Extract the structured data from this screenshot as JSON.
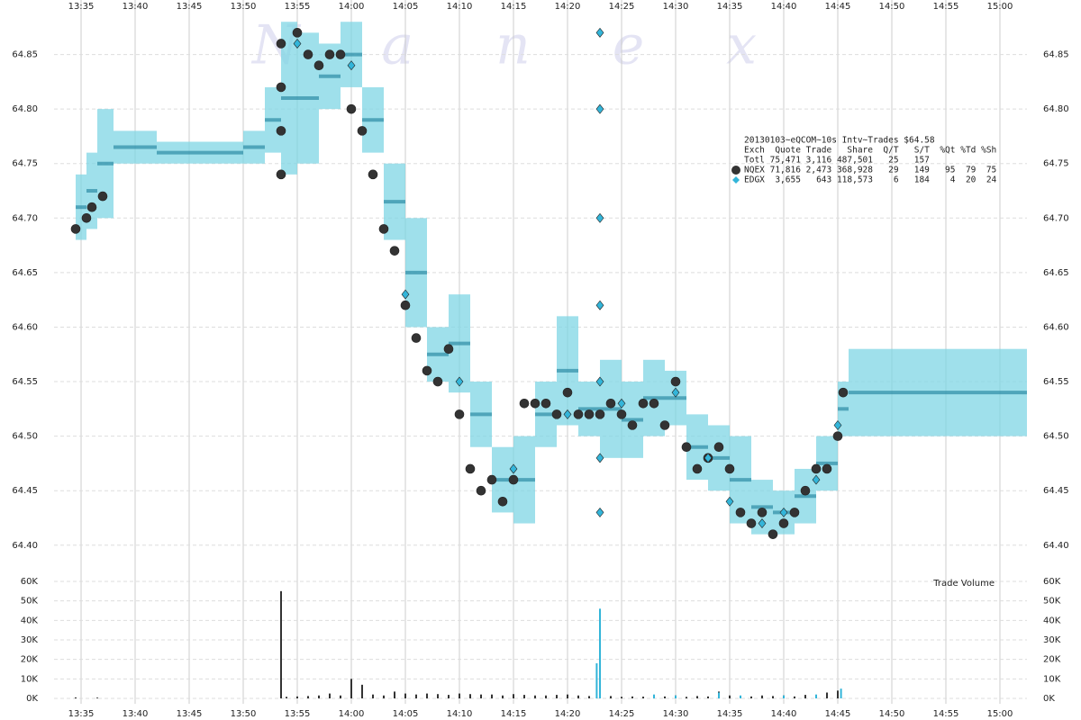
{
  "watermark": "N a n e x",
  "chart_data": [
    {
      "type": "price",
      "legend": {
        "title": "20130103~eQCOM~10s Intv~Trades $64.58",
        "header": "Exch  Quote Trade   Share  Q/T   S/T  %Qt %Td %Sh",
        "rows": [
          "Totl 75,471 3,116 487,501   25   157",
          "NQEX 71,816 2,473 368,928   29   149   95  79  75",
          "EDGX  3,655   643 118,573    6   184    4  20  24"
        ]
      },
      "xlim": [
        812.5,
        902.5
      ],
      "xticks": [
        {
          "value": 815,
          "label": "13:35"
        },
        {
          "value": 820,
          "label": "13:40"
        },
        {
          "value": 825,
          "label": "13:45"
        },
        {
          "value": 830,
          "label": "13:50"
        },
        {
          "value": 835,
          "label": "13:55"
        },
        {
          "value": 840,
          "label": "14:00"
        },
        {
          "value": 845,
          "label": "14:05"
        },
        {
          "value": 850,
          "label": "14:10"
        },
        {
          "value": 855,
          "label": "14:15"
        },
        {
          "value": 860,
          "label": "14:20"
        },
        {
          "value": 865,
          "label": "14:25"
        },
        {
          "value": 870,
          "label": "14:30"
        },
        {
          "value": 875,
          "label": "14:35"
        },
        {
          "value": 880,
          "label": "14:40"
        },
        {
          "value": 885,
          "label": "14:45"
        },
        {
          "value": 890,
          "label": "14:50"
        },
        {
          "value": 895,
          "label": "14:55"
        },
        {
          "value": 900,
          "label": "15:00"
        }
      ],
      "ylim": [
        64.38,
        64.9
      ],
      "yticks": [
        {
          "value": 64.4,
          "label": "64.40"
        },
        {
          "value": 64.45,
          "label": "64.45"
        },
        {
          "value": 64.5,
          "label": "64.50"
        },
        {
          "value": 64.55,
          "label": "64.55"
        },
        {
          "value": 64.6,
          "label": "64.60"
        },
        {
          "value": 64.65,
          "label": "64.65"
        },
        {
          "value": 64.7,
          "label": "64.70"
        },
        {
          "value": 64.75,
          "label": "64.75"
        },
        {
          "value": 64.8,
          "label": "64.80"
        },
        {
          "value": 64.85,
          "label": "64.85"
        }
      ],
      "grid": true,
      "quote": {
        "color": "#7fd6e4",
        "x": [
          814.5,
          815.5,
          816.5,
          818,
          822,
          826,
          830,
          832,
          833.5,
          835,
          837,
          839,
          841,
          843,
          845,
          847,
          849,
          851,
          853,
          855,
          857,
          859,
          861,
          863,
          865,
          867,
          869,
          871,
          873,
          875,
          877,
          879,
          881,
          883,
          885,
          886,
          894,
          902
        ],
        "low": [
          64.68,
          64.69,
          64.7,
          64.75,
          64.75,
          64.75,
          64.75,
          64.76,
          64.74,
          64.75,
          64.8,
          64.82,
          64.76,
          64.68,
          64.6,
          64.55,
          64.54,
          64.49,
          64.43,
          64.42,
          64.49,
          64.51,
          64.5,
          64.48,
          64.48,
          64.5,
          64.51,
          64.46,
          64.45,
          64.42,
          64.41,
          64.41,
          64.42,
          64.45,
          64.5,
          64.5,
          64.5,
          64.5
        ],
        "high": [
          64.74,
          64.76,
          64.8,
          64.78,
          64.77,
          64.77,
          64.78,
          64.82,
          64.88,
          64.87,
          64.86,
          64.88,
          64.82,
          64.75,
          64.7,
          64.6,
          64.63,
          64.55,
          64.49,
          64.5,
          64.55,
          64.61,
          64.55,
          64.57,
          64.55,
          64.57,
          64.56,
          64.52,
          64.51,
          64.5,
          64.46,
          64.45,
          64.47,
          64.5,
          64.55,
          64.58,
          64.58,
          64.58
        ]
      },
      "series": [
        {
          "name": "NQEX",
          "color": "#333333",
          "marker": "circle",
          "x": [
            814.5,
            815.5,
            816,
            817,
            833.5,
            833.5,
            833.5,
            833.5,
            835,
            836,
            837,
            838,
            839,
            840,
            841,
            842,
            843,
            844,
            845,
            846,
            847,
            848,
            849,
            850,
            851,
            852,
            853,
            854,
            855,
            856,
            857,
            858,
            859,
            860,
            861,
            862,
            863,
            864,
            865,
            866,
            867,
            868,
            869,
            870,
            871,
            872,
            873,
            874,
            875,
            876,
            877,
            878,
            879,
            880,
            881,
            882,
            883,
            884,
            885,
            885.5
          ],
          "values": [
            64.69,
            64.7,
            64.71,
            64.72,
            64.74,
            64.78,
            64.82,
            64.86,
            64.87,
            64.85,
            64.84,
            64.85,
            64.85,
            64.8,
            64.78,
            64.74,
            64.69,
            64.67,
            64.62,
            64.59,
            64.56,
            64.55,
            64.58,
            64.52,
            64.47,
            64.45,
            64.46,
            64.44,
            64.46,
            64.53,
            64.53,
            64.53,
            64.52,
            64.54,
            64.52,
            64.52,
            64.52,
            64.53,
            64.52,
            64.51,
            64.53,
            64.53,
            64.51,
            64.55,
            64.49,
            64.47,
            64.48,
            64.49,
            64.47,
            64.43,
            64.42,
            64.43,
            64.41,
            64.42,
            64.43,
            64.45,
            64.47,
            64.47,
            64.5,
            64.54
          ]
        },
        {
          "name": "EDGX",
          "color": "#33b5d9",
          "marker": "diamond",
          "x": [
            835,
            840,
            845,
            850,
            855,
            860,
            863,
            863,
            863,
            863,
            863,
            863,
            863,
            865,
            870,
            873,
            875,
            878,
            880,
            883,
            885
          ],
          "values": [
            64.86,
            64.84,
            64.63,
            64.55,
            64.47,
            64.52,
            64.87,
            64.8,
            64.7,
            64.62,
            64.55,
            64.48,
            64.43,
            64.53,
            64.54,
            64.48,
            64.44,
            64.42,
            64.43,
            64.46,
            64.51
          ]
        }
      ]
    },
    {
      "type": "volume",
      "label": "Trade Volume",
      "xlim": [
        812.5,
        902.5
      ],
      "ylim": [
        0,
        60000
      ],
      "yticks": [
        {
          "value": 0,
          "label": "0K"
        },
        {
          "value": 10000,
          "label": "10K"
        },
        {
          "value": 20000,
          "label": "20K"
        },
        {
          "value": 30000,
          "label": "30K"
        },
        {
          "value": 40000,
          "label": "40K"
        },
        {
          "value": 50000,
          "label": "50K"
        },
        {
          "value": 60000,
          "label": "60K"
        }
      ],
      "grid": true,
      "series": [
        {
          "color": "#333333",
          "x": [
            814.5,
            816.5,
            833.5,
            834,
            835,
            836,
            837,
            838,
            839,
            840,
            841,
            842,
            843,
            844,
            845,
            846,
            847,
            848,
            849,
            850,
            851,
            852,
            853,
            854,
            855,
            856,
            857,
            858,
            859,
            860,
            861,
            862,
            863,
            864,
            865,
            866,
            867,
            868,
            869,
            870,
            871,
            872,
            873,
            874,
            875,
            876,
            877,
            878,
            879,
            880,
            881,
            882,
            883,
            884,
            885
          ],
          "values": [
            500,
            400,
            55000,
            800,
            1000,
            1200,
            1500,
            2500,
            1500,
            10000,
            7000,
            2000,
            1500,
            3500,
            2500,
            2000,
            2500,
            2200,
            1800,
            2500,
            2200,
            2000,
            2000,
            1500,
            2200,
            1800,
            1500,
            1500,
            1800,
            2000,
            1500,
            1200,
            1000,
            1200,
            800,
            1000,
            900,
            1200,
            1000,
            1500,
            800,
            1200,
            1000,
            3500,
            1500,
            1200,
            1000,
            1500,
            1200,
            1500,
            1000,
            1800,
            1500,
            3000,
            4000
          ]
        },
        {
          "color": "#33b5d9",
          "x": [
            862.7,
            863,
            868,
            870,
            874,
            876,
            880,
            883,
            885.3
          ],
          "values": [
            18000,
            46000,
            2000,
            1500,
            3000,
            1500,
            1500,
            2000,
            5000
          ]
        }
      ]
    }
  ]
}
